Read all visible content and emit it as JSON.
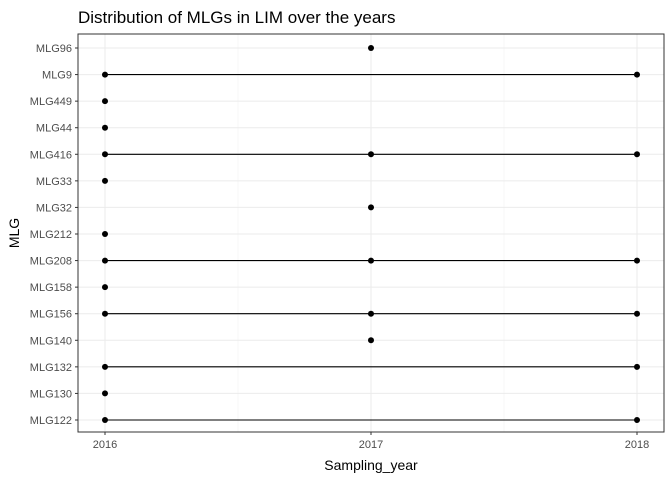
{
  "chart_data": {
    "type": "scatter",
    "title": "Distribution of MLGs in LIM over the years",
    "xlabel": "Sampling_year",
    "ylabel": "MLG",
    "x_ticks": [
      2016,
      2017,
      2018
    ],
    "xlim": [
      2016,
      2018
    ],
    "categories": [
      "MLG122",
      "MLG130",
      "MLG132",
      "MLG140",
      "MLG156",
      "MLG158",
      "MLG208",
      "MLG212",
      "MLG32",
      "MLG33",
      "MLG416",
      "MLG44",
      "MLG449",
      "MLG9",
      "MLG96"
    ],
    "points": [
      {
        "mlg": "MLG122",
        "years": [
          2016,
          2018
        ]
      },
      {
        "mlg": "MLG130",
        "years": [
          2016
        ]
      },
      {
        "mlg": "MLG132",
        "years": [
          2016,
          2018
        ]
      },
      {
        "mlg": "MLG140",
        "years": [
          2017
        ]
      },
      {
        "mlg": "MLG156",
        "years": [
          2016,
          2017,
          2018
        ]
      },
      {
        "mlg": "MLG158",
        "years": [
          2016
        ]
      },
      {
        "mlg": "MLG208",
        "years": [
          2016,
          2017,
          2018
        ]
      },
      {
        "mlg": "MLG212",
        "years": [
          2016
        ]
      },
      {
        "mlg": "MLG32",
        "years": [
          2017
        ]
      },
      {
        "mlg": "MLG33",
        "years": [
          2016
        ]
      },
      {
        "mlg": "MLG416",
        "years": [
          2016,
          2017,
          2018
        ]
      },
      {
        "mlg": "MLG44",
        "years": [
          2016
        ]
      },
      {
        "mlg": "MLG449",
        "years": [
          2016
        ]
      },
      {
        "mlg": "MLG9",
        "years": [
          2016,
          2018
        ]
      },
      {
        "mlg": "MLG96",
        "years": [
          2017
        ]
      }
    ],
    "grid": true,
    "legend": "none"
  }
}
